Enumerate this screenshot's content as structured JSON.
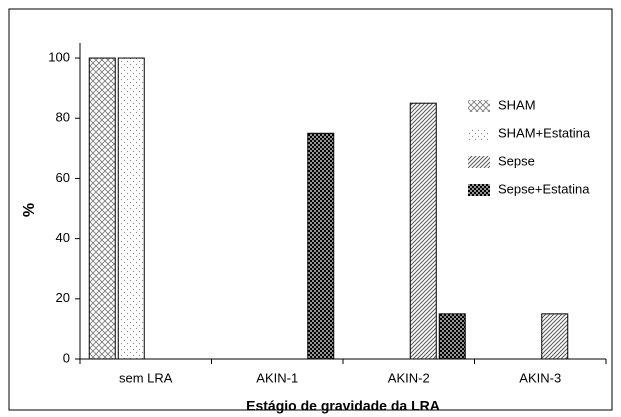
{
  "chart_data": {
    "type": "bar",
    "x_label": "Estágio de gravidade da LRA",
    "y_label": "%",
    "categories": [
      "sem LRA",
      "AKIN-1",
      "AKIN-2",
      "AKIN-3"
    ],
    "series": [
      {
        "name": "SHAM",
        "color": "#777777",
        "pattern": "crosshatch",
        "values": [
          100,
          0,
          0,
          0
        ]
      },
      {
        "name": "SHAM+Estatina",
        "color": "#888888",
        "pattern": "sparse-dots",
        "values": [
          100,
          0,
          0,
          0
        ]
      },
      {
        "name": "Sepse",
        "color": "#555555",
        "pattern": "diagonal",
        "values": [
          0,
          0,
          85,
          15
        ]
      },
      {
        "name": "Sepse+Estatina",
        "color": "#000000",
        "pattern": "dense-dots",
        "values": [
          0,
          75,
          15,
          0
        ]
      }
    ],
    "ylim": [
      0,
      105
    ],
    "yticks": [
      0,
      20,
      40,
      60,
      80,
      100
    ],
    "legend": "upper right",
    "grid": false
  }
}
